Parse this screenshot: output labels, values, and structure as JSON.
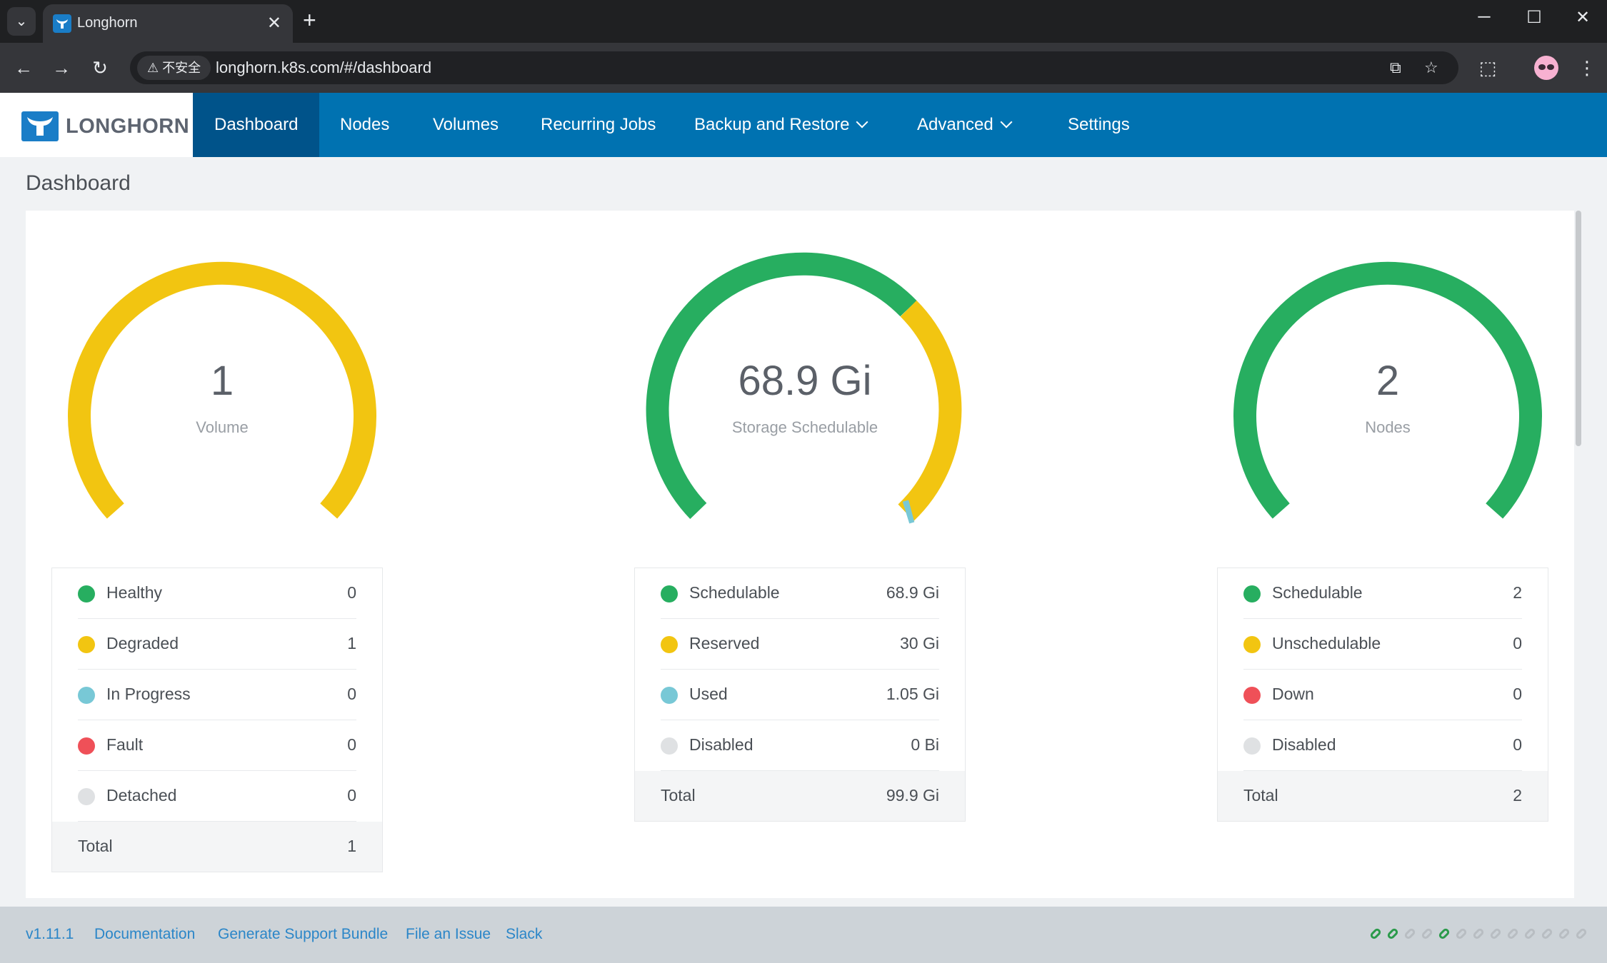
{
  "browser": {
    "tab_title": "Longhorn",
    "insecure_label": "不安全",
    "url": "longhorn.k8s.com/#/dashboard"
  },
  "app": {
    "brand": "LONGHORN",
    "nav": [
      {
        "label": "Dashboard",
        "active": true
      },
      {
        "label": "Nodes"
      },
      {
        "label": "Volumes"
      },
      {
        "label": "Recurring Jobs"
      },
      {
        "label": "Backup and Restore",
        "dropdown": true
      },
      {
        "label": "Advanced",
        "dropdown": true
      },
      {
        "label": "Settings"
      }
    ]
  },
  "page": {
    "title": "Dashboard"
  },
  "colors": {
    "green": "#27ae60",
    "yellow": "#f2c511",
    "blue": "#78c8d6",
    "red": "#ef5058",
    "gray": "#dfe1e3",
    "brand": "#0072b1"
  },
  "gauges": {
    "volume": {
      "value": "1",
      "label": "Volume",
      "rows": [
        {
          "label": "Healthy",
          "value": "0",
          "color": "#27ae60"
        },
        {
          "label": "Degraded",
          "value": "1",
          "color": "#f2c511"
        },
        {
          "label": "In Progress",
          "value": "0",
          "color": "#78c8d6"
        },
        {
          "label": "Fault",
          "value": "0",
          "color": "#ef5058"
        },
        {
          "label": "Detached",
          "value": "0",
          "color": "#dfe1e3"
        }
      ],
      "total_label": "Total",
      "total_value": "1"
    },
    "storage": {
      "value": "68.9 Gi",
      "label": "Storage Schedulable",
      "rows": [
        {
          "label": "Schedulable",
          "value": "68.9 Gi",
          "color": "#27ae60"
        },
        {
          "label": "Reserved",
          "value": "30 Gi",
          "color": "#f2c511"
        },
        {
          "label": "Used",
          "value": "1.05 Gi",
          "color": "#78c8d6"
        },
        {
          "label": "Disabled",
          "value": "0 Bi",
          "color": "#dfe1e3"
        }
      ],
      "total_label": "Total",
      "total_value": "99.9 Gi"
    },
    "nodes": {
      "value": "2",
      "label": "Nodes",
      "rows": [
        {
          "label": "Schedulable",
          "value": "2",
          "color": "#27ae60"
        },
        {
          "label": "Unschedulable",
          "value": "0",
          "color": "#f2c511"
        },
        {
          "label": "Down",
          "value": "0",
          "color": "#ef5058"
        },
        {
          "label": "Disabled",
          "value": "0",
          "color": "#dfe1e3"
        }
      ],
      "total_label": "Total",
      "total_value": "2"
    }
  },
  "footer": {
    "version": "v1.11.1",
    "documentation": "Documentation",
    "support_bundle": "Generate Support Bundle",
    "file_issue": "File an Issue",
    "slack": "Slack"
  }
}
